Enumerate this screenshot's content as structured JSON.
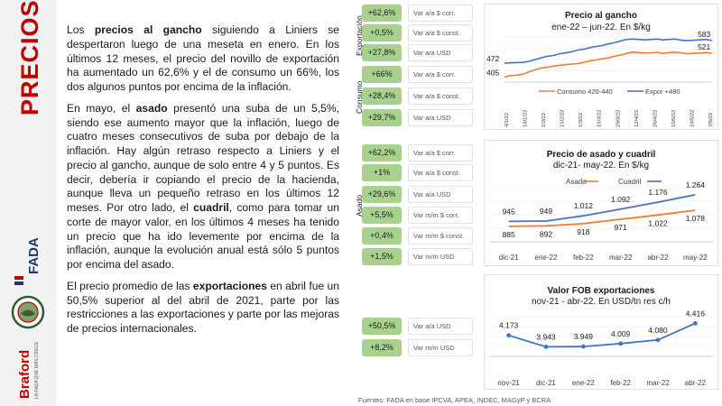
{
  "side": {
    "title": "PRECIOS",
    "brand_fada": "FADA",
    "brand_braford": "Braford",
    "brand_braford_tag": "LA RAZA QUE MÁS CRECE"
  },
  "text": {
    "p1": [
      {
        "t": "Los ",
        "b": false
      },
      {
        "t": "precios al gancho",
        "b": true
      },
      {
        "t": " siguiendo a Liniers se despertaron luego de una meseta en enero. En los últimos 12 meses, el precio del novillo de exportación ha aumentado un 62,6% y el de consumo un 66%, los dos algunos puntos por encima de la inflación.",
        "b": false
      }
    ],
    "p2": [
      {
        "t": "En mayo, el ",
        "b": false
      },
      {
        "t": "asado",
        "b": true
      },
      {
        "t": " presentó una suba de un 5,5%, siendo ese aumento mayor que la inflación, luego de cuatro meses consecutivos de suba por debajo de la inflación. Hay algún retraso respecto a Liniers y el precio al gancho, aunque de solo entre 4 y 5 puntos. Es decir, debería ir copiando el precio de la hacienda, aunque lleva un pequeño retraso en los últimos 12 meses. Por otro lado, el ",
        "b": false
      },
      {
        "t": "cuadril",
        "b": true
      },
      {
        "t": ", como para tomar un corte de mayor valor, en los últimos 4 meses ha tenido un precio que ha ido levemente por encima de la inflación, aunque la evolución anual está sólo 5 puntos por encima del asado.",
        "b": false
      }
    ],
    "p3": [
      {
        "t": "El precio promedio de las ",
        "b": false
      },
      {
        "t": "exportaciones",
        "b": true
      },
      {
        "t": " en abril fue un 50,5% superior al del abril de 2021, parte por las restricciones a las exportaciones y parte por las mejoras de precios internacionales.",
        "b": false
      }
    ]
  },
  "gancho": {
    "group1": "Exportación",
    "group2": "Consumo",
    "badges": [
      {
        "value": "+62,6%",
        "label": "Var a/a $ corr."
      },
      {
        "value": "+0,5%",
        "label": "Var a/a $ const."
      },
      {
        "value": "+27,8%",
        "label": "Var a/a USD"
      },
      {
        "value": "+66%",
        "label": "Var a/a $ corr."
      },
      {
        "value": "+28,4%",
        "label": "Var a/a $ const."
      },
      {
        "value": "+29,7%",
        "label": "Var a/a USD"
      }
    ]
  },
  "asado": {
    "group": "Asado",
    "badges": [
      {
        "value": "+62,2%",
        "label": "Var a/a $ corr."
      },
      {
        "value": "+1%",
        "label": "Var a/a $ const."
      },
      {
        "value": "+29,6%",
        "label": "Var a/a USD"
      },
      {
        "value": "+5,5%",
        "label": "Var m/m $ corr."
      },
      {
        "value": "+0,4%",
        "label": "Var m/m $ const."
      },
      {
        "value": "+1,5%",
        "label": "Var m/m USD"
      }
    ]
  },
  "fob": {
    "badges": [
      {
        "value": "+50,5%",
        "label": "Var a/a USD"
      },
      {
        "value": "+8,2%",
        "label": "Var m/m USD"
      }
    ]
  },
  "source": "Fuentes: FADA en base IPCVA, APEA, INDEC, MAGyP y BCRA",
  "colors": {
    "orange": "#ed7d31",
    "blue": "#4472c4",
    "badge": "#a9d18e",
    "title_red": "#c00000"
  },
  "chart_data": [
    {
      "type": "line",
      "title": "Precio al gancho",
      "subtitle": "ene-22 – jun-22. En $/kg",
      "x_ticks": [
        "4/1/22",
        "18/1/22",
        "1/2/22",
        "15/2/22",
        "1/3/22",
        "15/3/22",
        "29/3/22",
        "12/4/22",
        "26/4/22",
        "10/5/22",
        "24/5/22",
        "7/6/22"
      ],
      "series": [
        {
          "name": "Consumo 420-440",
          "color": "#ed7d31",
          "values": [
            405,
            412,
            414,
            418,
            430,
            440,
            448,
            452,
            458,
            462,
            465,
            468,
            470,
            476,
            484,
            488,
            494,
            498,
            506,
            512,
            520,
            526,
            524,
            522,
            523,
            525,
            520,
            524,
            526,
            522,
            518,
            520,
            522,
            524,
            521
          ]
        },
        {
          "name": "Expor +480",
          "color": "#4472c4",
          "values": [
            472,
            474,
            475,
            476,
            481,
            490,
            498,
            506,
            510,
            518,
            522,
            528,
            536,
            540,
            548,
            554,
            558,
            566,
            572,
            580,
            588,
            590,
            588,
            586,
            588,
            590,
            586,
            588,
            590,
            584,
            582,
            584,
            586,
            588,
            583
          ]
        }
      ],
      "labels": {
        "consumo_start": "405",
        "expor_start": "472",
        "expor_end": "583",
        "consumo_end": "521"
      },
      "ylim": [
        380,
        600
      ]
    },
    {
      "type": "line",
      "title": "Precio de asado y cuadril",
      "subtitle": "dic-21- may-22. En $/kg",
      "categories": [
        "dic-21",
        "ene-22",
        "feb-22",
        "mar-22",
        "abr-22",
        "may-22"
      ],
      "series": [
        {
          "name": "Asado",
          "color": "#ed7d31",
          "values": [
            885,
            892,
            918,
            971,
            1022,
            1078
          ],
          "labels": [
            "885",
            "892",
            "918",
            "971",
            "1.022",
            "1.078"
          ]
        },
        {
          "name": "Cuadril",
          "color": "#4472c4",
          "values": [
            945,
            949,
            1012,
            1092,
            1176,
            1264
          ],
          "labels": [
            "945",
            "949",
            "1.012",
            "1.092",
            "1.176",
            "1.264"
          ]
        }
      ],
      "ylim": [
        700,
        1350
      ]
    },
    {
      "type": "line",
      "title": "Valor FOB exportaciones",
      "subtitle": "nov-21 - abr-22. En USD/tn res c/h",
      "categories": [
        "nov-21",
        "dic-21",
        "ene-22",
        "feb-22",
        "mar-22",
        "abr-22"
      ],
      "series": [
        {
          "name": "",
          "color": "#4472c4",
          "values": [
            4173,
            3943,
            3949,
            4009,
            4080,
            4416
          ],
          "labels": [
            "4.173",
            "3.943",
            "3.949",
            "4.009",
            "4.080",
            "4.416"
          ]
        }
      ],
      "ylim": [
        3750,
        4550
      ]
    }
  ]
}
